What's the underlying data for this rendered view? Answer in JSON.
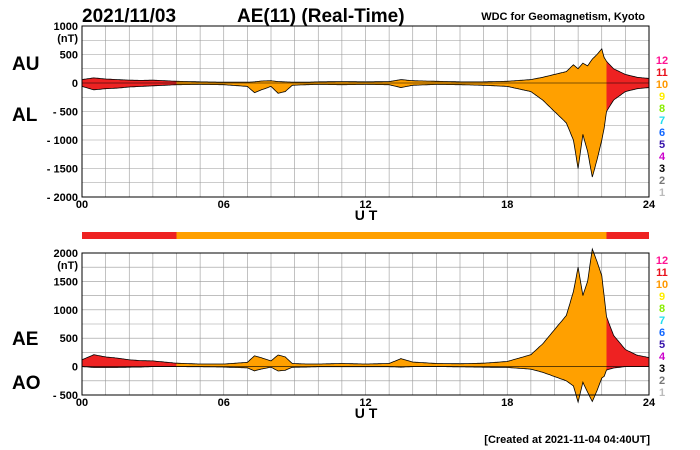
{
  "header": {
    "date": "2021/11/03",
    "title": "AE(11) (Real-Time)",
    "source": "WDC for Geomagnetism, Kyoto"
  },
  "footer": {
    "created": "[Created at 2021-11-04 04:40UT]"
  },
  "level_legend": {
    "labels": [
      "12",
      "11",
      "10",
      "9",
      "8",
      "7",
      "6",
      "5",
      "4",
      "3",
      "2",
      "1"
    ],
    "colors": [
      "#ff1493",
      "#e8101b",
      "#ff9900",
      "#ffee00",
      "#88ee00",
      "#22ddee",
      "#1166ff",
      "#3311aa",
      "#cc00cc",
      "#000000",
      "#777777",
      "#bbbbbb"
    ]
  },
  "colors": {
    "level11": "#ee2222",
    "level10": "#ffa000",
    "outline": "#000000",
    "grid": "#999999"
  },
  "chart_data": [
    {
      "type": "area",
      "panel": "AU/AL",
      "label_upper": "AU",
      "label_lower": "AL",
      "unit": "(nT)",
      "xlabel": "U T",
      "xticks": [
        "00",
        "06",
        "12",
        "18",
        "24"
      ],
      "xlim": [
        0,
        24
      ],
      "ylim": [
        -2000,
        1000
      ],
      "yticks": [
        1000,
        500,
        0,
        -500,
        -1000,
        -1500,
        -2000
      ],
      "ytick_labels": [
        "1000",
        "500",
        "0",
        "- 500",
        "- 1000",
        "- 1500",
        "- 2000"
      ],
      "grid": true,
      "level_segments": [
        {
          "from": 0,
          "to": 4,
          "level": 11
        },
        {
          "from": 4,
          "to": 22.2,
          "level": 10
        },
        {
          "from": 22.2,
          "to": 24,
          "level": 11
        }
      ],
      "x": [
        0,
        0.5,
        1,
        1.5,
        2,
        2.5,
        3,
        3.5,
        4,
        5,
        6,
        7,
        7.3,
        7.6,
        8,
        8.3,
        8.6,
        8.9,
        9.5,
        10,
        11,
        12,
        13,
        13.5,
        14,
        15,
        16,
        17,
        18,
        19,
        19.5,
        20,
        20.5,
        20.8,
        21,
        21.2,
        21.4,
        21.6,
        21.8,
        22,
        22.1,
        22.2,
        22.5,
        23,
        23.5,
        24
      ],
      "au": [
        60,
        90,
        70,
        60,
        50,
        45,
        50,
        40,
        30,
        20,
        15,
        15,
        20,
        35,
        40,
        25,
        20,
        15,
        15,
        20,
        25,
        20,
        25,
        60,
        40,
        30,
        20,
        20,
        30,
        60,
        100,
        150,
        200,
        320,
        250,
        350,
        300,
        420,
        500,
        600,
        450,
        380,
        250,
        150,
        100,
        80
      ],
      "al": [
        -60,
        -120,
        -100,
        -90,
        -70,
        -60,
        -50,
        -40,
        -30,
        -25,
        -30,
        -60,
        -170,
        -120,
        -60,
        -180,
        -150,
        -40,
        -30,
        -25,
        -30,
        -25,
        -30,
        -80,
        -40,
        -25,
        -30,
        -40,
        -60,
        -150,
        -300,
        -500,
        -700,
        -1000,
        -1500,
        -900,
        -1200,
        -1650,
        -1350,
        -1000,
        -800,
        -500,
        -300,
        -150,
        -100,
        -80
      ]
    },
    {
      "type": "area",
      "panel": "AE/AO",
      "label_upper": "AE",
      "label_lower": "AO",
      "unit": "(nT)",
      "xlabel": "U T",
      "xticks": [
        "00",
        "06",
        "12",
        "18",
        "24"
      ],
      "xlim": [
        0,
        24
      ],
      "ylim": [
        -500,
        2000
      ],
      "yticks": [
        2000,
        1500,
        1000,
        500,
        0,
        -500
      ],
      "ytick_labels": [
        "2000",
        "1500",
        "1000",
        "500",
        "0",
        "- 500"
      ],
      "grid": true,
      "level_segments": [
        {
          "from": 0,
          "to": 4,
          "level": 11
        },
        {
          "from": 4,
          "to": 22.2,
          "level": 10
        },
        {
          "from": 22.2,
          "to": 24,
          "level": 11
        }
      ],
      "x": [
        0,
        0.5,
        1,
        1.5,
        2,
        2.5,
        3,
        3.5,
        4,
        5,
        6,
        7,
        7.3,
        7.6,
        8,
        8.3,
        8.6,
        8.9,
        9.5,
        10,
        11,
        12,
        13,
        13.5,
        14,
        15,
        16,
        17,
        18,
        19,
        19.5,
        20,
        20.5,
        20.8,
        21,
        21.2,
        21.4,
        21.6,
        21.8,
        22,
        22.1,
        22.2,
        22.5,
        23,
        23.5,
        24
      ],
      "ae": [
        120,
        210,
        170,
        150,
        120,
        105,
        100,
        80,
        60,
        45,
        45,
        75,
        190,
        155,
        100,
        205,
        170,
        55,
        45,
        45,
        55,
        45,
        55,
        140,
        80,
        55,
        50,
        60,
        90,
        210,
        400,
        650,
        900,
        1320,
        1750,
        1250,
        1500,
        2070,
        1850,
        1600,
        1250,
        880,
        550,
        300,
        200,
        160
      ],
      "ao": [
        0,
        -15,
        -15,
        -15,
        -10,
        -8,
        0,
        0,
        0,
        -2,
        -8,
        -22,
        -75,
        -42,
        -10,
        -77,
        -65,
        -12,
        -8,
        -2,
        -2,
        -2,
        -2,
        -10,
        0,
        2,
        -5,
        -10,
        -15,
        -45,
        -100,
        -175,
        -250,
        -340,
        -625,
        -275,
        -450,
        -615,
        -425,
        -200,
        -175,
        -60,
        -25,
        0,
        0,
        0
      ]
    }
  ]
}
